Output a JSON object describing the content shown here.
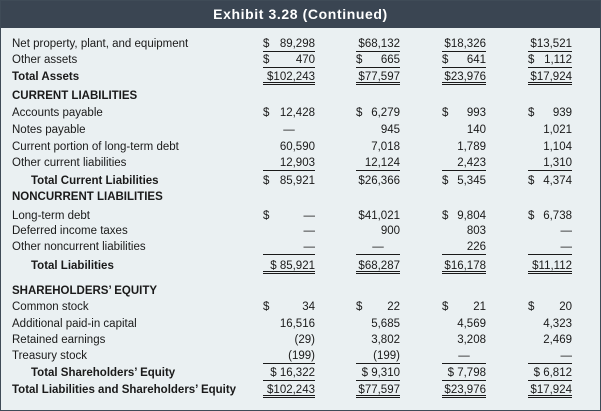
{
  "exhibit": {
    "title": "Exhibit 3.28 (Continued)"
  },
  "rows": [
    {
      "label": "Net property, plant, and equipment",
      "bold": false,
      "indent": false,
      "cells": [
        {
          "d": "$",
          "v": "89,298",
          "u": "ul"
        },
        {
          "d": "",
          "v": "$68,132",
          "u": "ul"
        },
        {
          "d": "",
          "v": "$18,326",
          "u": "ul"
        },
        {
          "d": "",
          "v": "$13,521",
          "u": "ul"
        }
      ]
    },
    {
      "label": "Other assets",
      "bold": false,
      "indent": false,
      "cells": [
        {
          "d": "$",
          "v": "470",
          "u": "ul"
        },
        {
          "d": "$",
          "v": "665",
          "u": "ul"
        },
        {
          "d": "$",
          "v": "641",
          "u": "ul"
        },
        {
          "d": "$",
          "v": "1,112",
          "u": "ul"
        }
      ]
    },
    {
      "label": "Total Assets",
      "bold": true,
      "indent": false,
      "cells": [
        {
          "d": "",
          "v": "$102,243",
          "u": "dul"
        },
        {
          "d": "",
          "v": "$77,597",
          "u": "dul"
        },
        {
          "d": "",
          "v": "$23,976",
          "u": "dul"
        },
        {
          "d": "",
          "v": "$17,924",
          "u": "dul"
        }
      ]
    },
    {
      "label": "CURRENT LIABILITIES",
      "bold": true,
      "indent": false,
      "cells": []
    },
    {
      "label": "Accounts payable",
      "bold": false,
      "indent": false,
      "cells": [
        {
          "d": "$",
          "v": "12,428",
          "u": ""
        },
        {
          "d": "$",
          "v": "6,279",
          "u": ""
        },
        {
          "d": "$",
          "v": "993",
          "u": ""
        },
        {
          "d": "$",
          "v": "939",
          "u": ""
        }
      ]
    },
    {
      "label": "Notes payable",
      "bold": false,
      "indent": false,
      "cells": [
        {
          "d": "",
          "v": "—",
          "u": "",
          "c": true
        },
        {
          "d": "",
          "v": "945",
          "u": ""
        },
        {
          "d": "",
          "v": "140",
          "u": ""
        },
        {
          "d": "",
          "v": "1,021",
          "u": ""
        }
      ]
    },
    {
      "label": "Current portion of long-term debt",
      "bold": false,
      "indent": false,
      "cells": [
        {
          "d": "",
          "v": "60,590",
          "u": ""
        },
        {
          "d": "",
          "v": "7,018",
          "u": ""
        },
        {
          "d": "",
          "v": "1,789",
          "u": ""
        },
        {
          "d": "",
          "v": "1,104",
          "u": ""
        }
      ]
    },
    {
      "label": "Other current liabilities",
      "bold": false,
      "indent": false,
      "cells": [
        {
          "d": "",
          "v": "12,903",
          "u": "ul"
        },
        {
          "d": "",
          "v": "12,124",
          "u": "ul"
        },
        {
          "d": "",
          "v": "2,423",
          "u": "ul"
        },
        {
          "d": "",
          "v": "1,310",
          "u": "ul"
        }
      ]
    },
    {
      "label": "Total Current Liabilities",
      "bold": true,
      "indent": true,
      "cells": [
        {
          "d": "$",
          "v": "85,921",
          "u": ""
        },
        {
          "d": "",
          "v": "$26,366",
          "u": ""
        },
        {
          "d": "$",
          "v": "5,345",
          "u": ""
        },
        {
          "d": "$",
          "v": "4,374",
          "u": ""
        }
      ]
    },
    {
      "label": "NONCURRENT LIABILITIES",
      "bold": true,
      "indent": false,
      "cells": []
    },
    {
      "label": "Long-term debt",
      "bold": false,
      "indent": false,
      "cells": [
        {
          "d": "$",
          "v": "—",
          "u": ""
        },
        {
          "d": "",
          "v": "$41,021",
          "u": ""
        },
        {
          "d": "$",
          "v": "9,804",
          "u": ""
        },
        {
          "d": "$",
          "v": "6,738",
          "u": ""
        }
      ]
    },
    {
      "label": "Deferred income taxes",
      "bold": false,
      "indent": false,
      "cells": [
        {
          "d": "",
          "v": "—",
          "u": ""
        },
        {
          "d": "",
          "v": "900",
          "u": ""
        },
        {
          "d": "",
          "v": "803",
          "u": ""
        },
        {
          "d": "",
          "v": "—",
          "u": ""
        }
      ]
    },
    {
      "label": "Other noncurrent liabilities",
      "bold": false,
      "indent": false,
      "cells": [
        {
          "d": "",
          "v": "—",
          "u": "ul"
        },
        {
          "d": "",
          "v": "—",
          "u": "ul",
          "c": true
        },
        {
          "d": "",
          "v": "226",
          "u": "ul"
        },
        {
          "d": "",
          "v": "—",
          "u": "ul"
        }
      ]
    },
    {
      "label": "Total Liabilities",
      "bold": true,
      "indent": true,
      "cells": [
        {
          "d": "",
          "v": "$ 85,921",
          "u": "dul"
        },
        {
          "d": "",
          "v": "$68,287",
          "u": "dul"
        },
        {
          "d": "",
          "v": "$16,178",
          "u": "dul"
        },
        {
          "d": "",
          "v": "$11,112",
          "u": "dul"
        }
      ]
    },
    {
      "label": "",
      "bold": false,
      "indent": false,
      "cells": []
    },
    {
      "label": "SHAREHOLDERS’ EQUITY",
      "bold": true,
      "indent": false,
      "cells": []
    },
    {
      "label": "Common stock",
      "bold": false,
      "indent": false,
      "cells": [
        {
          "d": "$",
          "v": "34",
          "u": ""
        },
        {
          "d": "$",
          "v": "22",
          "u": ""
        },
        {
          "d": "$",
          "v": "21",
          "u": ""
        },
        {
          "d": "$",
          "v": "20",
          "u": ""
        }
      ]
    },
    {
      "label": "Additional paid-in capital",
      "bold": false,
      "indent": false,
      "cells": [
        {
          "d": "",
          "v": "16,516",
          "u": ""
        },
        {
          "d": "",
          "v": "5,685",
          "u": ""
        },
        {
          "d": "",
          "v": "4,569",
          "u": ""
        },
        {
          "d": "",
          "v": "4,323",
          "u": ""
        }
      ]
    },
    {
      "label": "Retained earnings",
      "bold": false,
      "indent": false,
      "cells": [
        {
          "d": "",
          "v": "(29)",
          "u": ""
        },
        {
          "d": "",
          "v": "3,802",
          "u": ""
        },
        {
          "d": "",
          "v": "3,208",
          "u": ""
        },
        {
          "d": "",
          "v": "2,469",
          "u": ""
        }
      ]
    },
    {
      "label": "Treasury stock",
      "bold": false,
      "indent": false,
      "cells": [
        {
          "d": "",
          "v": "(199)",
          "u": "ul"
        },
        {
          "d": "",
          "v": "(199)",
          "u": "ul"
        },
        {
          "d": "",
          "v": "—",
          "u": "ul",
          "c": true
        },
        {
          "d": "",
          "v": "—",
          "u": "ul"
        }
      ]
    },
    {
      "label": "Total Shareholders’ Equity",
      "bold": true,
      "indent": true,
      "cells": [
        {
          "d": "",
          "v": "$ 16,322",
          "u": "ul"
        },
        {
          "d": "",
          "v": "$ 9,310",
          "u": "ul"
        },
        {
          "d": "",
          "v": "$ 7,798",
          "u": "ul"
        },
        {
          "d": "",
          "v": "$ 6,812",
          "u": "ul"
        }
      ]
    },
    {
      "label": "Total Liabilities and Shareholders’ Equity",
      "bold": true,
      "indent": false,
      "cells": [
        {
          "d": "",
          "v": "$102,243",
          "u": "dul"
        },
        {
          "d": "",
          "v": "$77,597",
          "u": "dul"
        },
        {
          "d": "",
          "v": "$23,976",
          "u": "dul"
        },
        {
          "d": "",
          "v": "$17,924",
          "u": "dul"
        }
      ]
    }
  ]
}
